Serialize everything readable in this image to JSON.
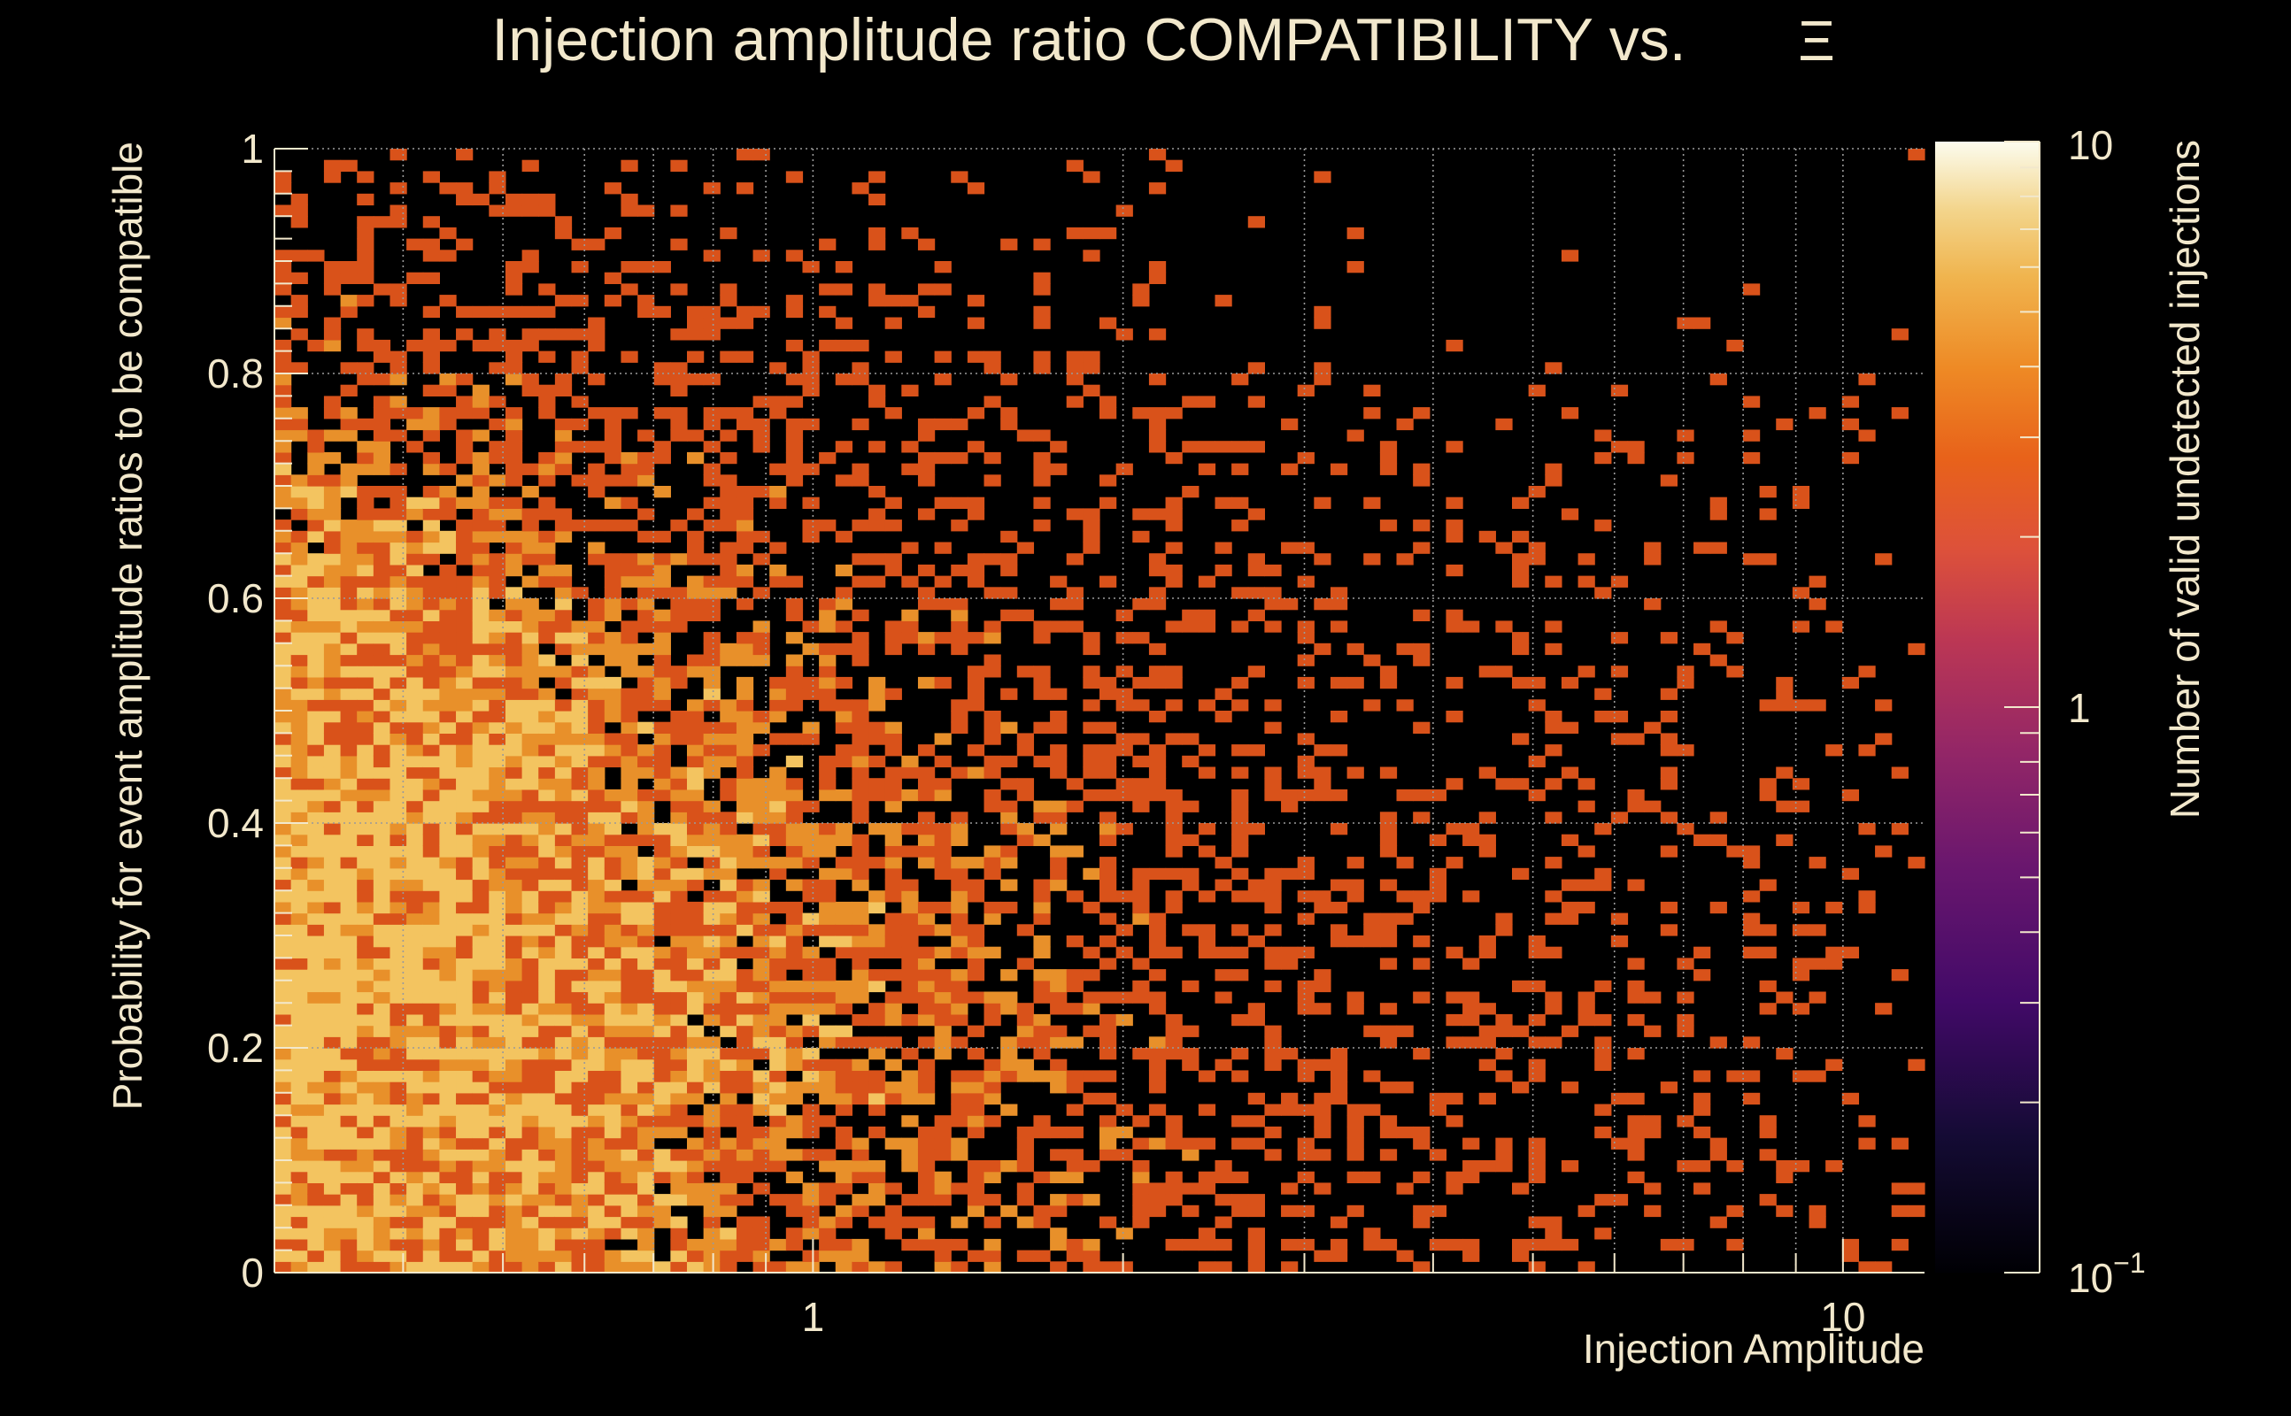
{
  "chart_data": {
    "type": "heatmap",
    "title": "Injection amplitude ratio COMPATIBILITY vs.",
    "title_symbol": "Ξ",
    "xlabel": "Injection Amplitude",
    "ylabel": "Probability for event amplitude ratios to be compatible",
    "zlabel": "Number of valid undetected injections",
    "x_scale": "log",
    "xlim": [
      0.3,
      12
    ],
    "ylim": [
      0,
      1
    ],
    "z_scale": "log",
    "zlim": [
      0.1,
      10
    ],
    "x_tick_labels": [
      "1",
      "10"
    ],
    "y_tick_labels": [
      "0",
      "0.2",
      "0.4",
      "0.6",
      "0.8",
      "1"
    ],
    "z_tick_labels": {
      "low_base": "10",
      "low_exp": "−1",
      "mid": "1",
      "high": "10"
    },
    "grid": true,
    "colormap": "inferno",
    "colors": {
      "background": "#000000",
      "text": "#f2e8cc",
      "grid": "#9a9a9a",
      "bin_low": "#d9521a",
      "bin_mid": "#e8902a",
      "bin_high": "#f3c460"
    },
    "binning": {
      "x_bins": 100,
      "y_bins": 100
    },
    "density_note_value_range": [
      1,
      4
    ]
  }
}
